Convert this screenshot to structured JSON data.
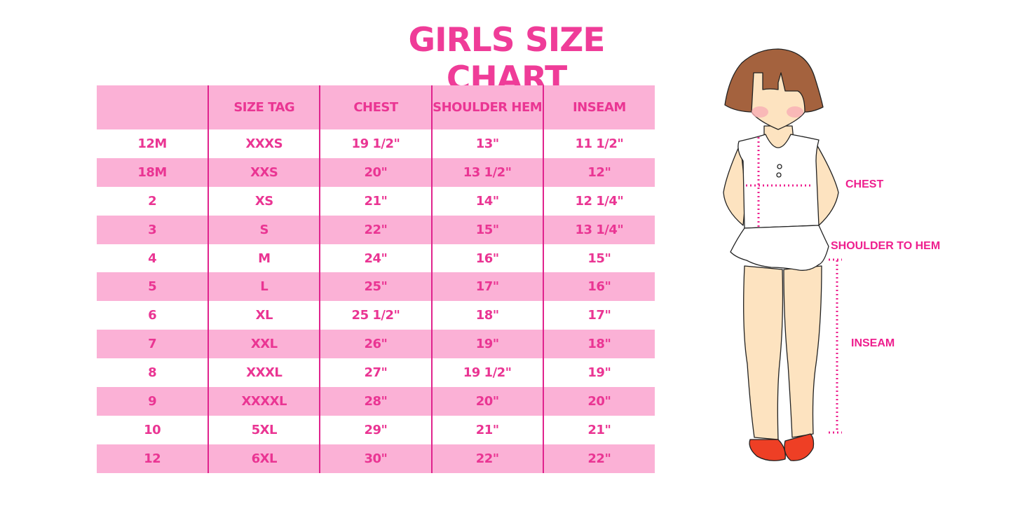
{
  "title": "GIRLS SIZE CHART",
  "table": {
    "headers": [
      "",
      "SIZE TAG",
      "CHEST",
      "SHOULDER HEM",
      "INSEAM"
    ],
    "rows": [
      [
        "12M",
        "XXXS",
        "19 1/2\"",
        "13\"",
        "11 1/2\""
      ],
      [
        "18M",
        "XXS",
        "20\"",
        "13 1/2\"",
        "12\""
      ],
      [
        "2",
        "XS",
        "21\"",
        "14\"",
        "12 1/4\""
      ],
      [
        "3",
        "S",
        "22\"",
        "15\"",
        "13 1/4\""
      ],
      [
        "4",
        "M",
        "24\"",
        "16\"",
        "15\""
      ],
      [
        "5",
        "L",
        "25\"",
        "17\"",
        "16\""
      ],
      [
        "6",
        "XL",
        "25 1/2\"",
        "18\"",
        "17\""
      ],
      [
        "7",
        "XXL",
        "26\"",
        "19\"",
        "18\""
      ],
      [
        "8",
        "XXXL",
        "27\"",
        "19 1/2\"",
        "19\""
      ],
      [
        "9",
        "XXXXL",
        "28\"",
        "20\"",
        "20\""
      ],
      [
        "10",
        "5XL",
        "29\"",
        "21\"",
        "21\""
      ],
      [
        "12",
        "6XL",
        "30\"",
        "22\"",
        "22\""
      ]
    ]
  },
  "figure": {
    "labels": {
      "chest": "CHEST",
      "shoulder_to_hem": "SHOULDER TO HEM",
      "inseam": "INSEAM"
    }
  },
  "colors": {
    "accent": "#ea3593",
    "band": "#fbb1d6",
    "divider": "#e0238d"
  }
}
